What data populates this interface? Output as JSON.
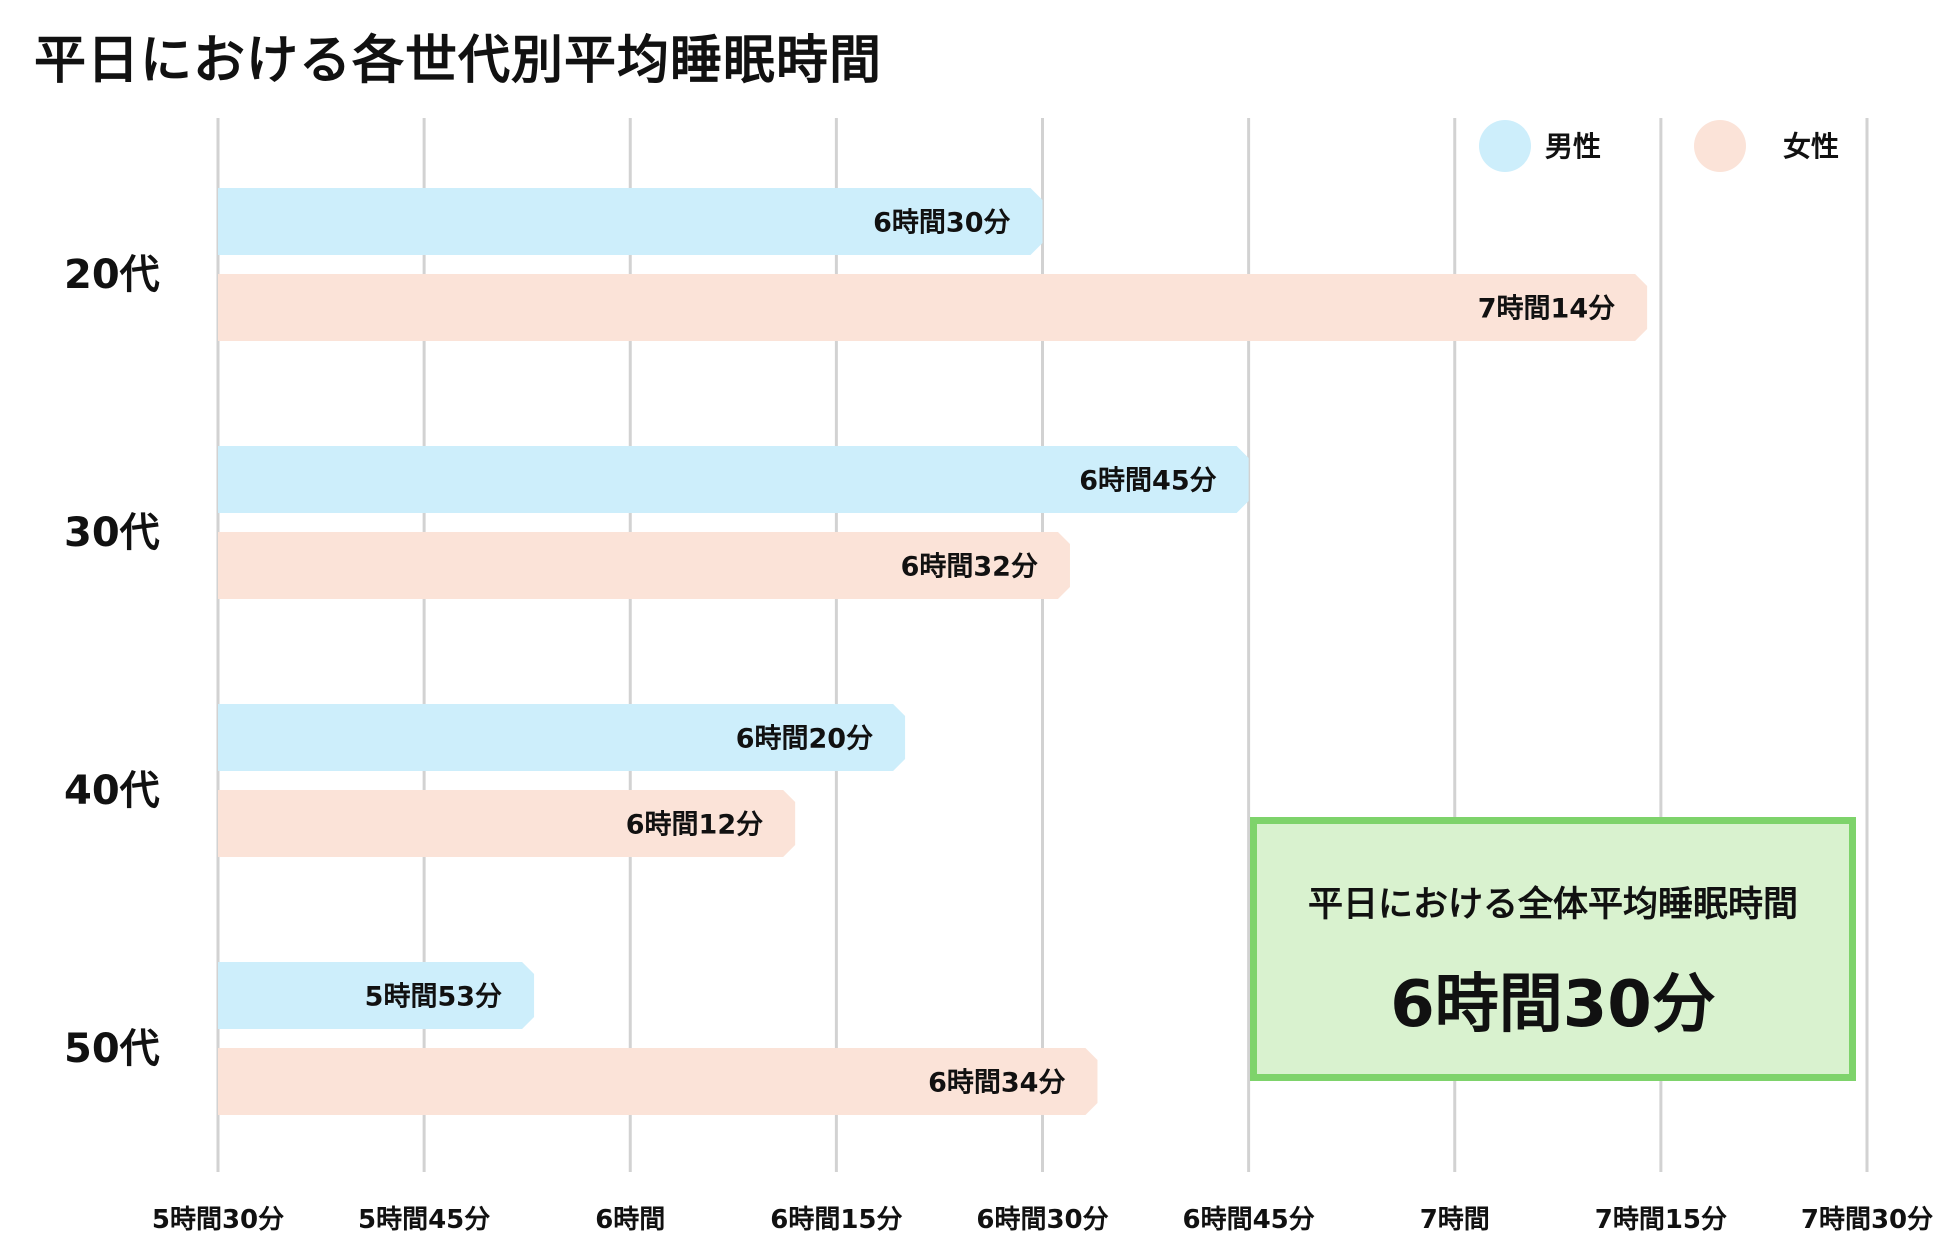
{
  "chart_data": {
    "type": "bar",
    "orientation": "horizontal",
    "title": "平日における各世代別平均睡眠時間",
    "unit": "minutes",
    "categories": [
      "20代",
      "30代",
      "40代",
      "50代"
    ],
    "series": [
      {
        "name": "男性",
        "color": "#cdeefb",
        "values": [
          390,
          405,
          380,
          353
        ],
        "labels": [
          "6時間30分",
          "6時間45分",
          "6時間20分",
          "5時間53分"
        ]
      },
      {
        "name": "女性",
        "color": "#fbe3d8",
        "values": [
          434,
          392,
          372,
          394
        ],
        "labels": [
          "7時間14分",
          "6時間32分",
          "6時間12分",
          "6時間34分"
        ]
      }
    ],
    "xlim": [
      330,
      450
    ],
    "x_ticks": [
      330,
      345,
      360,
      375,
      390,
      405,
      420,
      435,
      450
    ],
    "x_tick_labels": [
      "5時間30分",
      "5時間45分",
      "6時間",
      "6時間15分",
      "6時間30分",
      "6時間45分",
      "7時間",
      "7時間15分",
      "7時間30分"
    ],
    "grid": "vertical",
    "legend_position": "top-right"
  },
  "summary": {
    "title": "平日における全体平均睡眠時間",
    "value": "6時間30分"
  }
}
